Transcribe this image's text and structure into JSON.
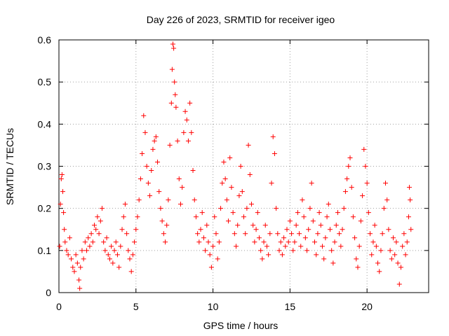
{
  "chart_data": {
    "type": "scatter",
    "title": "Day 226 of 2023, SRMTID for receiver igeo",
    "xlabel": "GPS time / hours",
    "ylabel": "SRMTID / TECUs",
    "xlim": [
      0,
      24
    ],
    "ylim": [
      0,
      0.6
    ],
    "xticks": [
      0,
      5,
      10,
      15,
      20
    ],
    "yticks": [
      0,
      0.1,
      0.2,
      0.3,
      0.4,
      0.5,
      0.6
    ],
    "xtick_labels": [
      "0",
      "5",
      "10",
      "15",
      "20"
    ],
    "ytick_labels": [
      "0",
      "0.1",
      "0.2",
      "0.3",
      "0.4",
      "0.5",
      "0.6"
    ],
    "grid": true,
    "marker": "+",
    "color": "#ff0000",
    "series": [
      {
        "name": "igeo",
        "points": [
          [
            0.05,
            0.11
          ],
          [
            0.1,
            0.21
          ],
          [
            0.15,
            0.27
          ],
          [
            0.2,
            0.28
          ],
          [
            0.25,
            0.24
          ],
          [
            0.3,
            0.19
          ],
          [
            0.35,
            0.15
          ],
          [
            0.4,
            0.12
          ],
          [
            0.5,
            0.1
          ],
          [
            0.6,
            0.09
          ],
          [
            0.7,
            0.13
          ],
          [
            0.8,
            0.08
          ],
          [
            0.9,
            0.06
          ],
          [
            1.0,
            0.05
          ],
          [
            1.1,
            0.09
          ],
          [
            1.2,
            0.07
          ],
          [
            1.3,
            0.03
          ],
          [
            1.35,
            0.01
          ],
          [
            1.4,
            0.06
          ],
          [
            1.5,
            0.1
          ],
          [
            1.6,
            0.08
          ],
          [
            1.7,
            0.12
          ],
          [
            1.8,
            0.1
          ],
          [
            1.9,
            0.13
          ],
          [
            2.0,
            0.11
          ],
          [
            2.1,
            0.14
          ],
          [
            2.2,
            0.12
          ],
          [
            2.3,
            0.16
          ],
          [
            2.4,
            0.15
          ],
          [
            2.5,
            0.18
          ],
          [
            2.6,
            0.14
          ],
          [
            2.7,
            0.17
          ],
          [
            2.8,
            0.2
          ],
          [
            2.9,
            0.12
          ],
          [
            3.0,
            0.1
          ],
          [
            3.1,
            0.13
          ],
          [
            3.2,
            0.09
          ],
          [
            3.3,
            0.08
          ],
          [
            3.4,
            0.11
          ],
          [
            3.5,
            0.07
          ],
          [
            3.6,
            0.1
          ],
          [
            3.7,
            0.12
          ],
          [
            3.8,
            0.09
          ],
          [
            3.9,
            0.06
          ],
          [
            4.0,
            0.11
          ],
          [
            4.1,
            0.15
          ],
          [
            4.2,
            0.18
          ],
          [
            4.3,
            0.21
          ],
          [
            4.4,
            0.14
          ],
          [
            4.5,
            0.1
          ],
          [
            4.6,
            0.08
          ],
          [
            4.7,
            0.05
          ],
          [
            4.8,
            0.09
          ],
          [
            4.9,
            0.12
          ],
          [
            5.0,
            0.15
          ],
          [
            5.1,
            0.18
          ],
          [
            5.2,
            0.22
          ],
          [
            5.3,
            0.27
          ],
          [
            5.4,
            0.33
          ],
          [
            5.5,
            0.42
          ],
          [
            5.6,
            0.38
          ],
          [
            5.7,
            0.3
          ],
          [
            5.8,
            0.26
          ],
          [
            5.9,
            0.23
          ],
          [
            6.0,
            0.29
          ],
          [
            6.1,
            0.34
          ],
          [
            6.2,
            0.36
          ],
          [
            6.3,
            0.37
          ],
          [
            6.4,
            0.31
          ],
          [
            6.5,
            0.24
          ],
          [
            6.6,
            0.2
          ],
          [
            6.7,
            0.17
          ],
          [
            6.8,
            0.14
          ],
          [
            6.9,
            0.12
          ],
          [
            7.0,
            0.16
          ],
          [
            7.1,
            0.22
          ],
          [
            7.2,
            0.35
          ],
          [
            7.3,
            0.45
          ],
          [
            7.35,
            0.53
          ],
          [
            7.4,
            0.59
          ],
          [
            7.45,
            0.58
          ],
          [
            7.5,
            0.5
          ],
          [
            7.55,
            0.47
          ],
          [
            7.6,
            0.44
          ],
          [
            7.7,
            0.36
          ],
          [
            7.8,
            0.27
          ],
          [
            7.9,
            0.21
          ],
          [
            8.0,
            0.25
          ],
          [
            8.1,
            0.38
          ],
          [
            8.2,
            0.43
          ],
          [
            8.3,
            0.41
          ],
          [
            8.4,
            0.36
          ],
          [
            8.5,
            0.45
          ],
          [
            8.6,
            0.38
          ],
          [
            8.7,
            0.29
          ],
          [
            8.8,
            0.22
          ],
          [
            8.9,
            0.18
          ],
          [
            9.0,
            0.14
          ],
          [
            9.1,
            0.12
          ],
          [
            9.2,
            0.15
          ],
          [
            9.3,
            0.19
          ],
          [
            9.4,
            0.13
          ],
          [
            9.5,
            0.1
          ],
          [
            9.6,
            0.16
          ],
          [
            9.7,
            0.12
          ],
          [
            9.8,
            0.09
          ],
          [
            9.9,
            0.06
          ],
          [
            10.0,
            0.11
          ],
          [
            10.1,
            0.18
          ],
          [
            10.2,
            0.14
          ],
          [
            10.3,
            0.08
          ],
          [
            10.4,
            0.12
          ],
          [
            10.5,
            0.2
          ],
          [
            10.6,
            0.26
          ],
          [
            10.7,
            0.31
          ],
          [
            10.8,
            0.27
          ],
          [
            10.9,
            0.22
          ],
          [
            11.0,
            0.17
          ],
          [
            11.1,
            0.32
          ],
          [
            11.2,
            0.25
          ],
          [
            11.3,
            0.19
          ],
          [
            11.4,
            0.14
          ],
          [
            11.5,
            0.11
          ],
          [
            11.6,
            0.16
          ],
          [
            11.7,
            0.23
          ],
          [
            11.8,
            0.3
          ],
          [
            11.9,
            0.24
          ],
          [
            12.0,
            0.18
          ],
          [
            12.1,
            0.14
          ],
          [
            12.2,
            0.2
          ],
          [
            12.3,
            0.35
          ],
          [
            12.4,
            0.28
          ],
          [
            12.5,
            0.21
          ],
          [
            12.6,
            0.16
          ],
          [
            12.7,
            0.12
          ],
          [
            12.8,
            0.15
          ],
          [
            12.9,
            0.19
          ],
          [
            13.0,
            0.13
          ],
          [
            13.1,
            0.1
          ],
          [
            13.2,
            0.08
          ],
          [
            13.3,
            0.12
          ],
          [
            13.4,
            0.16
          ],
          [
            13.5,
            0.11
          ],
          [
            13.6,
            0.09
          ],
          [
            13.7,
            0.14
          ],
          [
            13.8,
            0.26
          ],
          [
            13.9,
            0.37
          ],
          [
            14.0,
            0.33
          ],
          [
            14.1,
            0.2
          ],
          [
            14.2,
            0.14
          ],
          [
            14.3,
            0.1
          ],
          [
            14.4,
            0.12
          ],
          [
            14.5,
            0.09
          ],
          [
            14.6,
            0.13
          ],
          [
            14.7,
            0.11
          ],
          [
            14.8,
            0.15
          ],
          [
            14.9,
            0.12
          ],
          [
            15.0,
            0.17
          ],
          [
            15.1,
            0.14
          ],
          [
            15.2,
            0.1
          ],
          [
            15.3,
            0.12
          ],
          [
            15.4,
            0.16
          ],
          [
            15.5,
            0.19
          ],
          [
            15.6,
            0.14
          ],
          [
            15.7,
            0.11
          ],
          [
            15.8,
            0.22
          ],
          [
            15.9,
            0.18
          ],
          [
            16.0,
            0.13
          ],
          [
            16.1,
            0.1
          ],
          [
            16.2,
            0.15
          ],
          [
            16.3,
            0.2
          ],
          [
            16.4,
            0.26
          ],
          [
            16.5,
            0.17
          ],
          [
            16.6,
            0.12
          ],
          [
            16.7,
            0.09
          ],
          [
            16.8,
            0.14
          ],
          [
            16.9,
            0.19
          ],
          [
            17.0,
            0.16
          ],
          [
            17.1,
            0.11
          ],
          [
            17.2,
            0.08
          ],
          [
            17.3,
            0.13
          ],
          [
            17.4,
            0.18
          ],
          [
            17.5,
            0.21
          ],
          [
            17.6,
            0.15
          ],
          [
            17.7,
            0.1
          ],
          [
            17.8,
            0.07
          ],
          [
            17.9,
            0.12
          ],
          [
            18.0,
            0.16
          ],
          [
            18.1,
            0.19
          ],
          [
            18.2,
            0.14
          ],
          [
            18.3,
            0.11
          ],
          [
            18.4,
            0.15
          ],
          [
            18.5,
            0.2
          ],
          [
            18.6,
            0.24
          ],
          [
            18.7,
            0.27
          ],
          [
            18.8,
            0.3
          ],
          [
            18.9,
            0.32
          ],
          [
            19.0,
            0.25
          ],
          [
            19.1,
            0.18
          ],
          [
            19.2,
            0.13
          ],
          [
            19.3,
            0.08
          ],
          [
            19.4,
            0.06
          ],
          [
            19.5,
            0.11
          ],
          [
            19.6,
            0.17
          ],
          [
            19.7,
            0.23
          ],
          [
            19.8,
            0.34
          ],
          [
            19.9,
            0.3
          ],
          [
            20.0,
            0.26
          ],
          [
            20.1,
            0.19
          ],
          [
            20.2,
            0.14
          ],
          [
            20.3,
            0.09
          ],
          [
            20.4,
            0.12
          ],
          [
            20.5,
            0.16
          ],
          [
            20.6,
            0.11
          ],
          [
            20.7,
            0.07
          ],
          [
            20.8,
            0.05
          ],
          [
            20.9,
            0.1
          ],
          [
            21.0,
            0.14
          ],
          [
            21.1,
            0.2
          ],
          [
            21.2,
            0.26
          ],
          [
            21.3,
            0.22
          ],
          [
            21.4,
            0.15
          ],
          [
            21.5,
            0.1
          ],
          [
            21.6,
            0.08
          ],
          [
            21.7,
            0.13
          ],
          [
            21.8,
            0.09
          ],
          [
            21.9,
            0.12
          ],
          [
            22.0,
            0.07
          ],
          [
            22.1,
            0.02
          ],
          [
            22.2,
            0.06
          ],
          [
            22.3,
            0.11
          ],
          [
            22.4,
            0.14
          ],
          [
            22.5,
            0.09
          ],
          [
            22.6,
            0.12
          ],
          [
            22.7,
            0.18
          ],
          [
            22.75,
            0.25
          ],
          [
            22.8,
            0.22
          ],
          [
            22.85,
            0.15
          ]
        ]
      }
    ]
  }
}
